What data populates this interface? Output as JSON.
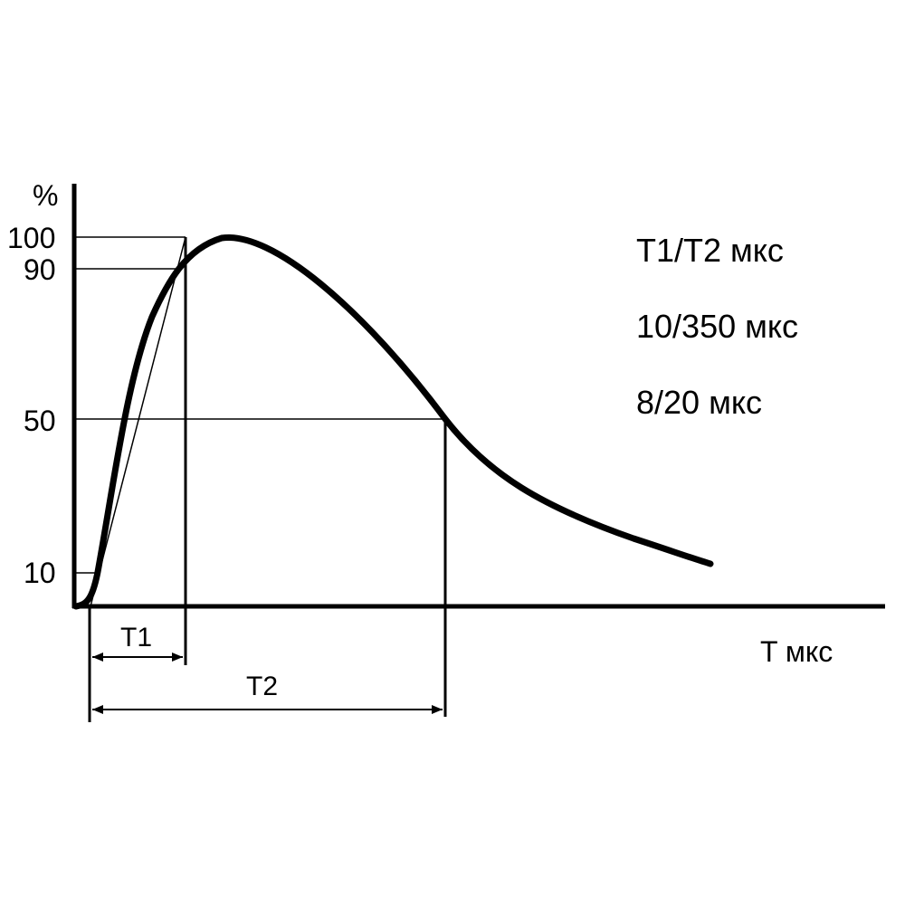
{
  "diagram": {
    "y_unit": "%",
    "x_label": "T мкс",
    "y_ticks": [
      "100",
      "90",
      "50",
      "10"
    ],
    "legend_lines": [
      "T1/T2 мкс",
      "10/350 мкс",
      "8/20 мкс"
    ],
    "t1_label": "T1",
    "t2_label": "T2"
  },
  "colors": {
    "line": "#000000",
    "background": "#ffffff"
  }
}
